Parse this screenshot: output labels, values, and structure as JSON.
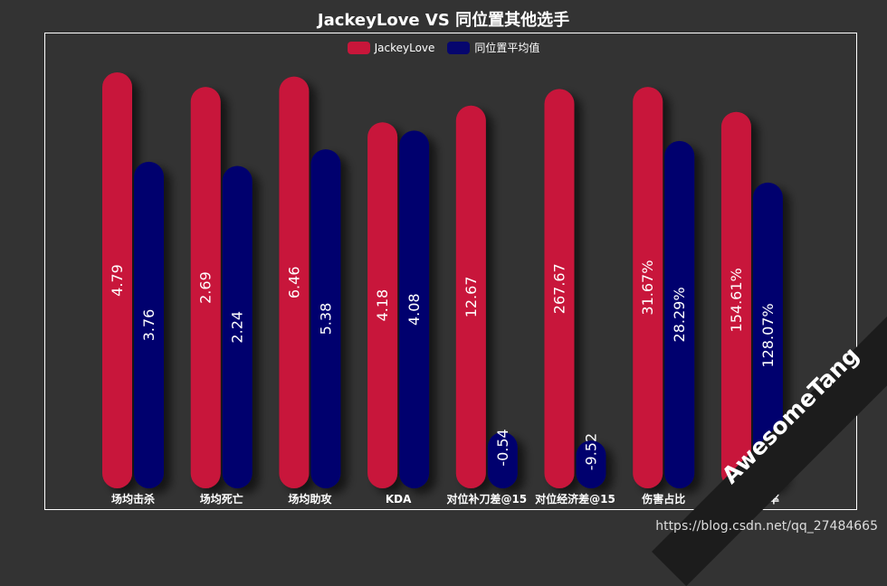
{
  "chart_data": {
    "type": "bar",
    "title": "JackeyLove VS 同位置其他选手",
    "categories": [
      "场均击杀",
      "场均死亡",
      "场均助攻",
      "KDA",
      "对位补刀差@15",
      "对位经济差@15",
      "伤害占比",
      "伤害转化率"
    ],
    "series": [
      {
        "name": "JackeyLove",
        "color": "#c8163a",
        "values": [
          4.79,
          2.69,
          6.46,
          4.18,
          12.67,
          267.67,
          31.67,
          154.61
        ],
        "labels": [
          "4.79",
          "2.69",
          "6.46",
          "4.18",
          "12.67",
          "267.67",
          "31.67%",
          "154.61%"
        ],
        "bar_height_ratio": [
          1.0,
          0.965,
          0.99,
          0.88,
          0.92,
          0.96,
          0.965,
          0.905
        ]
      },
      {
        "name": "同位置平均值",
        "color": "#06066e",
        "values": [
          3.76,
          2.24,
          5.38,
          4.08,
          -0.54,
          -9.52,
          28.29,
          128.07
        ],
        "labels": [
          "3.76",
          "2.24",
          "5.38",
          "4.08",
          "-0.54",
          "-9.52",
          "28.29%",
          "128.07%"
        ],
        "bar_height_ratio": [
          0.785,
          0.775,
          0.815,
          0.86,
          0.135,
          0.115,
          0.835,
          0.735
        ]
      }
    ],
    "grid": false,
    "legend_position": "top-center"
  },
  "watermark": "AwesomeTang",
  "footer_url": "https://blog.csdn.net/qq_27484665"
}
